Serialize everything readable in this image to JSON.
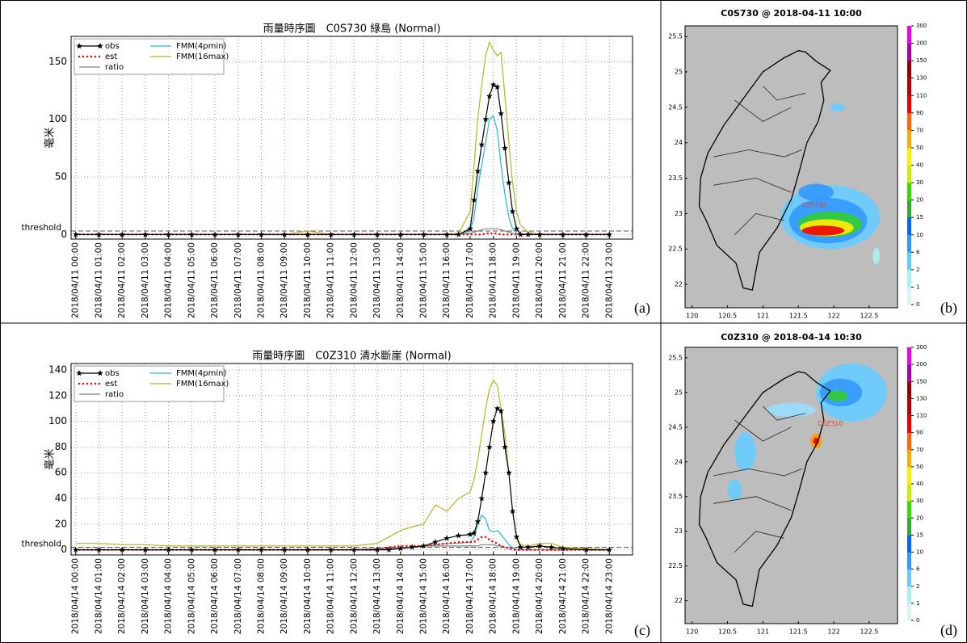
{
  "chart_data": [
    {
      "type": "line",
      "panel_label": "(a)",
      "title": "雨量時序圖　C0S730 綠島 (Normal)",
      "ylabel": "毫米",
      "threshold_label": "threshold",
      "threshold": 3,
      "grid": true,
      "legend": "upper left",
      "x": [
        0,
        1,
        2,
        3,
        4,
        5,
        6,
        7,
        8,
        9,
        10,
        11,
        12,
        13,
        14,
        15,
        16,
        16.5,
        17,
        17.17,
        17.33,
        17.5,
        17.67,
        17.83,
        18,
        18.17,
        18.33,
        18.5,
        18.67,
        18.83,
        19,
        19.17,
        19.5,
        20,
        21,
        22,
        23
      ],
      "xlim": [
        -0.2,
        24
      ],
      "ylim": [
        -4,
        172
      ],
      "yticks": [
        0,
        50,
        100,
        150
      ],
      "xticks": [
        {
          "value": 0,
          "label": "2018/04/11 00:00"
        },
        {
          "value": 1,
          "label": "2018/04/11 01:00"
        },
        {
          "value": 2,
          "label": "2018/04/11 02:00"
        },
        {
          "value": 3,
          "label": "2018/04/11 03:00"
        },
        {
          "value": 4,
          "label": "2018/04/11 04:00"
        },
        {
          "value": 5,
          "label": "2018/04/11 05:00"
        },
        {
          "value": 6,
          "label": "2018/04/11 06:00"
        },
        {
          "value": 7,
          "label": "2018/04/11 07:00"
        },
        {
          "value": 8,
          "label": "2018/04/11 08:00"
        },
        {
          "value": 9,
          "label": "2018/04/11 09:00"
        },
        {
          "value": 10,
          "label": "2018/04/11 10:00"
        },
        {
          "value": 11,
          "label": "2018/04/11 11:00"
        },
        {
          "value": 12,
          "label": "2018/04/11 12:00"
        },
        {
          "value": 13,
          "label": "2018/04/11 13:00"
        },
        {
          "value": 14,
          "label": "2018/04/11 14:00"
        },
        {
          "value": 15,
          "label": "2018/04/11 15:00"
        },
        {
          "value": 16,
          "label": "2018/04/11 16:00"
        },
        {
          "value": 17,
          "label": "2018/04/11 17:00"
        },
        {
          "value": 18,
          "label": "2018/04/11 18:00"
        },
        {
          "value": 19,
          "label": "2018/04/11 19:00"
        },
        {
          "value": 20,
          "label": "2018/04/11 20:00"
        },
        {
          "value": 21,
          "label": "2018/04/11 21:00"
        },
        {
          "value": 22,
          "label": "2018/04/11 22:00"
        },
        {
          "value": 23,
          "label": "2018/04/11 23:00"
        }
      ],
      "series": [
        {
          "name": "obs",
          "color": "#000000",
          "marker": "star",
          "values": [
            0,
            0,
            0,
            0,
            0,
            0,
            0,
            0,
            0,
            0,
            0,
            0,
            0,
            0,
            0,
            0,
            0,
            0,
            5,
            30,
            55,
            78,
            100,
            120,
            130,
            128,
            105,
            75,
            45,
            20,
            5,
            0,
            0,
            0,
            0,
            0,
            0
          ]
        },
        {
          "name": "est",
          "color": "#ff0000",
          "linestyle": "dotted",
          "values": [
            0,
            0,
            0,
            0,
            0,
            0,
            0,
            0,
            0,
            0,
            0,
            0,
            0,
            0,
            0,
            0,
            0,
            0,
            0,
            0,
            0,
            0,
            1,
            1,
            1,
            1,
            0,
            0,
            0,
            0,
            0,
            0,
            0,
            0,
            0,
            0,
            0
          ]
        },
        {
          "name": "ratio",
          "color": "#808080",
          "values": [
            0,
            0,
            0,
            0,
            0,
            0,
            0,
            0,
            0,
            0,
            0,
            0,
            0,
            0,
            0,
            0,
            0,
            0,
            1,
            2,
            3,
            4,
            5,
            5,
            5,
            5,
            4,
            3,
            2,
            1,
            0,
            0,
            0,
            0,
            0,
            0,
            0
          ]
        },
        {
          "name": "FMM(4pmin)",
          "color": "#22bbcc",
          "values": [
            0,
            0,
            0,
            0,
            0,
            0,
            0,
            0,
            0,
            0,
            0,
            0,
            0,
            0,
            0,
            0,
            0,
            0,
            3,
            15,
            40,
            60,
            80,
            100,
            103,
            90,
            60,
            35,
            15,
            5,
            1,
            0,
            0,
            0,
            0,
            0,
            0
          ]
        },
        {
          "name": "FMM(16max)",
          "color": "#b5b51e",
          "values": [
            0,
            0,
            0,
            0,
            0,
            0,
            0,
            0,
            0,
            0,
            3,
            0,
            0,
            0,
            0,
            0,
            0,
            1,
            20,
            60,
            100,
            130,
            155,
            167,
            160,
            155,
            158,
            120,
            80,
            45,
            20,
            8,
            2,
            0,
            0,
            0,
            0
          ]
        }
      ]
    },
    {
      "type": "map",
      "panel_label": "(b)",
      "title": "C0S730 @ 2018-04-11 10:00",
      "station": "C0S730",
      "xlim": [
        119.9,
        122.9
      ],
      "ylim": [
        21.67,
        25.65
      ],
      "xticks": [
        120,
        120.5,
        121,
        121.5,
        122,
        122.5
      ],
      "yticks": [
        22,
        22.5,
        23,
        23.5,
        24,
        24.5,
        25,
        25.5
      ],
      "colorbar": {
        "ticks": [
          0,
          1,
          2,
          6,
          10,
          15,
          20,
          30,
          40,
          50,
          70,
          90,
          110,
          130,
          150,
          200,
          300
        ],
        "colors": [
          "#d9f2f2",
          "#aaf0f0",
          "#66ccff",
          "#3399ff",
          "#0066ff",
          "#33aa33",
          "#33dd00",
          "#ccee00",
          "#ffee00",
          "#ffaa00",
          "#ff6600",
          "#ee0000",
          "#bb0000",
          "#990000",
          "#aa00aa",
          "#ee00ee"
        ]
      }
    },
    {
      "type": "line",
      "panel_label": "(c)",
      "title": "雨量時序圖　C0Z310 清水斷崖 (Normal)",
      "ylabel": "毫米",
      "threshold_label": "threshold",
      "threshold": 2,
      "grid": true,
      "legend": "upper left",
      "x": [
        0,
        1,
        2,
        3,
        4,
        5,
        6,
        7,
        8,
        9,
        10,
        11,
        12,
        13,
        13.5,
        14,
        14.5,
        15,
        15.5,
        16,
        16.5,
        17,
        17.17,
        17.33,
        17.5,
        17.67,
        17.83,
        18,
        18.17,
        18.33,
        18.5,
        18.67,
        18.83,
        19,
        19.17,
        19.5,
        20,
        20.5,
        21,
        22,
        23
      ],
      "xlim": [
        -0.2,
        24
      ],
      "ylim": [
        -4,
        145
      ],
      "yticks": [
        0,
        20,
        40,
        60,
        80,
        100,
        120,
        140
      ],
      "xticks": [
        {
          "value": 0,
          "label": "2018/04/14 00:00"
        },
        {
          "value": 1,
          "label": "2018/04/14 01:00"
        },
        {
          "value": 2,
          "label": "2018/04/14 02:00"
        },
        {
          "value": 3,
          "label": "2018/04/14 03:00"
        },
        {
          "value": 4,
          "label": "2018/04/14 04:00"
        },
        {
          "value": 5,
          "label": "2018/04/14 05:00"
        },
        {
          "value": 6,
          "label": "2018/04/14 06:00"
        },
        {
          "value": 7,
          "label": "2018/04/14 07:00"
        },
        {
          "value": 8,
          "label": "2018/04/14 08:00"
        },
        {
          "value": 9,
          "label": "2018/04/14 09:00"
        },
        {
          "value": 10,
          "label": "2018/04/14 10:00"
        },
        {
          "value": 11,
          "label": "2018/04/14 11:00"
        },
        {
          "value": 12,
          "label": "2018/04/14 12:00"
        },
        {
          "value": 13,
          "label": "2018/04/14 13:00"
        },
        {
          "value": 14,
          "label": "2018/04/14 14:00"
        },
        {
          "value": 15,
          "label": "2018/04/14 15:00"
        },
        {
          "value": 16,
          "label": "2018/04/14 16:00"
        },
        {
          "value": 17,
          "label": "2018/04/14 17:00"
        },
        {
          "value": 18,
          "label": "2018/04/14 18:00"
        },
        {
          "value": 19,
          "label": "2018/04/14 19:00"
        },
        {
          "value": 20,
          "label": "2018/04/14 20:00"
        },
        {
          "value": 21,
          "label": "2018/04/14 21:00"
        },
        {
          "value": 22,
          "label": "2018/04/14 22:00"
        },
        {
          "value": 23,
          "label": "2018/04/14 23:00"
        }
      ],
      "series": [
        {
          "name": "obs",
          "color": "#000000",
          "marker": "star",
          "values": [
            0,
            0,
            0,
            0,
            0,
            0,
            0,
            0,
            0,
            0,
            0,
            0,
            0,
            0,
            0,
            1,
            2,
            3,
            6,
            9,
            11,
            12,
            13,
            22,
            40,
            60,
            80,
            100,
            110,
            108,
            80,
            60,
            30,
            10,
            2,
            2,
            3,
            2,
            1,
            0,
            0
          ]
        },
        {
          "name": "est",
          "color": "#ff0000",
          "linestyle": "dotted",
          "values": [
            0,
            0,
            0,
            0,
            0,
            0,
            0,
            0,
            0,
            0,
            0,
            0,
            0,
            0,
            2,
            3,
            3,
            3,
            4,
            5,
            6,
            6,
            6,
            8,
            10,
            10,
            8,
            6,
            5,
            3,
            2,
            1,
            0,
            0,
            0,
            0,
            0,
            0,
            0,
            0,
            0
          ]
        },
        {
          "name": "ratio",
          "color": "#808080",
          "values": [
            0,
            0,
            0,
            0,
            0,
            0,
            0,
            0,
            0,
            0,
            0,
            0,
            0,
            1,
            1,
            2,
            2,
            3,
            3,
            3,
            3,
            3,
            3,
            3,
            4,
            4,
            4,
            4,
            3,
            3,
            2,
            2,
            1,
            0,
            0,
            0,
            0,
            0,
            0,
            0,
            0
          ]
        },
        {
          "name": "FMM(4pmin)",
          "color": "#22bbcc",
          "values": [
            0,
            0,
            0,
            0,
            0,
            0,
            0,
            0,
            0,
            0,
            0,
            0,
            0,
            0,
            1,
            2,
            2,
            3,
            4,
            5,
            5,
            6,
            10,
            20,
            27,
            24,
            15,
            14,
            15,
            12,
            8,
            4,
            2,
            0,
            0,
            0,
            0,
            0,
            0,
            0,
            0
          ]
        },
        {
          "name": "FMM(16max)",
          "color": "#b5b51e",
          "values": [
            5,
            5,
            4,
            4,
            3,
            3,
            3,
            3,
            3,
            3,
            3,
            3,
            3,
            5,
            10,
            15,
            18,
            20,
            35,
            30,
            40,
            45,
            55,
            70,
            90,
            110,
            125,
            132,
            128,
            110,
            90,
            60,
            30,
            10,
            4,
            3,
            5,
            5,
            2,
            1,
            0
          ]
        }
      ]
    },
    {
      "type": "map",
      "panel_label": "(d)",
      "title": "C0Z310 @ 2018-04-14 10:30",
      "station": "C0Z310",
      "xlim": [
        119.9,
        122.9
      ],
      "ylim": [
        21.67,
        25.65
      ],
      "xticks": [
        120,
        120.5,
        121,
        121.5,
        122,
        122.5
      ],
      "yticks": [
        22,
        22.5,
        23,
        23.5,
        24,
        24.5,
        25,
        25.5
      ],
      "colorbar": {
        "ticks": [
          0,
          1,
          2,
          6,
          10,
          15,
          20,
          30,
          40,
          50,
          70,
          90,
          110,
          130,
          150,
          200,
          300
        ],
        "colors": [
          "#d9f2f2",
          "#aaf0f0",
          "#66ccff",
          "#3399ff",
          "#0066ff",
          "#33aa33",
          "#33dd00",
          "#ccee00",
          "#ffee00",
          "#ffaa00",
          "#ff6600",
          "#ee0000",
          "#bb0000",
          "#990000",
          "#aa00aa",
          "#ee00ee"
        ]
      }
    }
  ]
}
